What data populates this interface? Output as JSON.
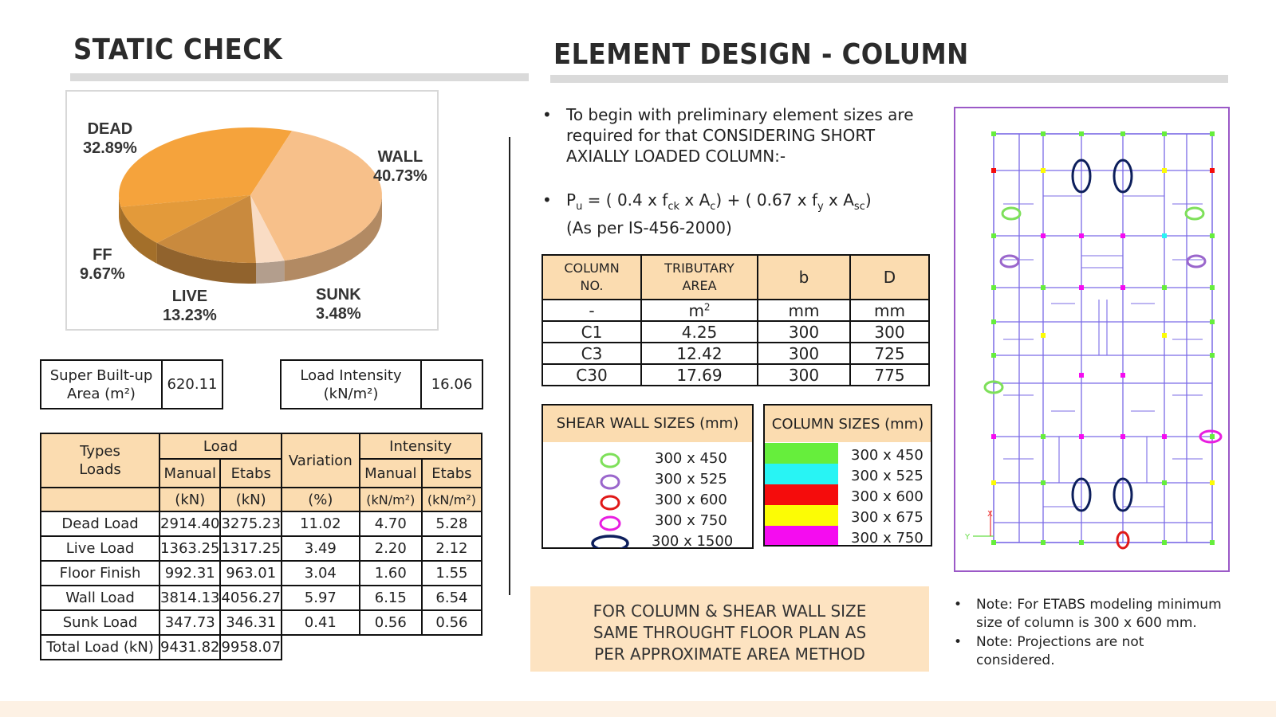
{
  "static_check": {
    "title": "STATIC CHECK",
    "chart_data": {
      "type": "pie",
      "slices": [
        {
          "label": "DEAD",
          "value": 32.89,
          "pct_text": "32.89%",
          "color": "#f5a33c"
        },
        {
          "label": "WALL",
          "value": 40.73,
          "pct_text": "40.73%",
          "color": "#f7c08a"
        },
        {
          "label": "SUNK",
          "value": 3.48,
          "pct_text": "3.48%",
          "color": "#f9dcc4"
        },
        {
          "label": "LIVE",
          "value": 13.23,
          "pct_text": "13.23%",
          "color": "#c98a3e"
        },
        {
          "label": "FF",
          "value": 9.67,
          "pct_text": "9.67%",
          "color": "#e39a3a"
        }
      ]
    },
    "super_builtup": {
      "label_line1": "Super Built-up",
      "label_line2": "Area (m²)",
      "value": "620.11"
    },
    "load_intensity": {
      "label_line1": "Load Intensity",
      "label_line2": "(kN/m²)",
      "value": "16.06"
    },
    "load_table": {
      "h_types": "Types",
      "h_loads": "Loads",
      "h_load": "Load",
      "h_variation": "Variation",
      "h_intensity": "Intensity",
      "h_manual": "Manual",
      "h_etabs": "Etabs",
      "h_manual2": "Manual",
      "h_etabs2": "Etabs",
      "u_kn1": "(kN)",
      "u_kn2": "(kN)",
      "u_pct": "(%)",
      "u_knm1": "(kN/m²)",
      "u_knm2": "(kN/m²)",
      "rows": [
        {
          "name": "Dead Load",
          "manual": "2914.40",
          "etabs": "3275.23",
          "variation": "11.02",
          "im": "4.70",
          "ie": "5.28"
        },
        {
          "name": "Live Load",
          "manual": "1363.25",
          "etabs": "1317.25",
          "variation": "3.49",
          "im": "2.20",
          "ie": "2.12"
        },
        {
          "name": "Floor Finish",
          "manual": "992.31",
          "etabs": "963.01",
          "variation": "3.04",
          "im": "1.60",
          "ie": "1.55"
        },
        {
          "name": "Wall Load",
          "manual": "3814.13",
          "etabs": "4056.27",
          "variation": "5.97",
          "im": "6.15",
          "ie": "6.54"
        },
        {
          "name": "Sunk Load",
          "manual": "347.73",
          "etabs": "346.31",
          "variation": "0.41",
          "im": "0.56",
          "ie": "0.56"
        }
      ],
      "total": {
        "name": "Total Load (kN)",
        "manual": "9431.82",
        "etabs": "9958.07"
      }
    }
  },
  "element_design": {
    "title": "ELEMENT DESIGN - COLUMN",
    "bullet1": "To begin with preliminary element sizes are required for that CONSIDERING SHORT AXIALLY LOADED COLUMN:-",
    "formula": {
      "p": "P",
      "u": "u",
      "eq": " = ( 0.4 x f",
      "ck": "ck",
      "xa": " x A",
      "c": "c",
      "mid": ") + ( 0.67 x f",
      "y": "y",
      "xa2": " x A",
      "sc": "sc",
      "end": ")"
    },
    "formula_ref": "(As per IS-456-2000)",
    "column_table": {
      "h_col_no": "COLUMN NO.",
      "h_trib": "TRIBUTARY AREA",
      "h_b": "b",
      "h_d": "D",
      "units": [
        "-",
        "m",
        "mm",
        "mm"
      ],
      "unit_sup": "2",
      "rows": [
        [
          "C1",
          "4.25",
          "300",
          "300"
        ],
        [
          "C3",
          "12.42",
          "300",
          "725"
        ],
        [
          "C30",
          "17.69",
          "300",
          "775"
        ]
      ]
    },
    "shear_wall_sizes": {
      "title": "SHEAR WALL SIZES (mm)",
      "items": [
        {
          "label": "300 x 450",
          "color": "#7ee05a"
        },
        {
          "label": "300 x 525",
          "color": "#9a66cc"
        },
        {
          "label": "300 x 600",
          "color": "#e01818"
        },
        {
          "label": "300 x 750",
          "color": "#e81ee0"
        },
        {
          "label": "300 x 1500",
          "color": "#0d1f5c"
        }
      ]
    },
    "column_sizes": {
      "title": "COLUMN SIZES (mm)",
      "items": [
        {
          "label": "300 x 450",
          "color": "#66ee3c"
        },
        {
          "label": "300 x 525",
          "color": "#28f4f4"
        },
        {
          "label": "300 x 600",
          "color": "#f50c0c"
        },
        {
          "label": "300 x 675",
          "color": "#fcfc05"
        },
        {
          "label": "300 x 750",
          "color": "#f50cf0"
        }
      ]
    },
    "note_box": {
      "line1": "FOR COLUMN & SHEAR WALL SIZE",
      "line2": "SAME THROUGHT FLOOR PLAN AS",
      "line3": "PER APPROXIMATE AREA METHOD"
    },
    "notes": [
      "Note: For ETABS modeling minimum size of column is 300 x 600 mm.",
      "Note: Projections are not considered."
    ],
    "plan": {
      "axis_y": "Y",
      "axis_x": "X"
    }
  }
}
